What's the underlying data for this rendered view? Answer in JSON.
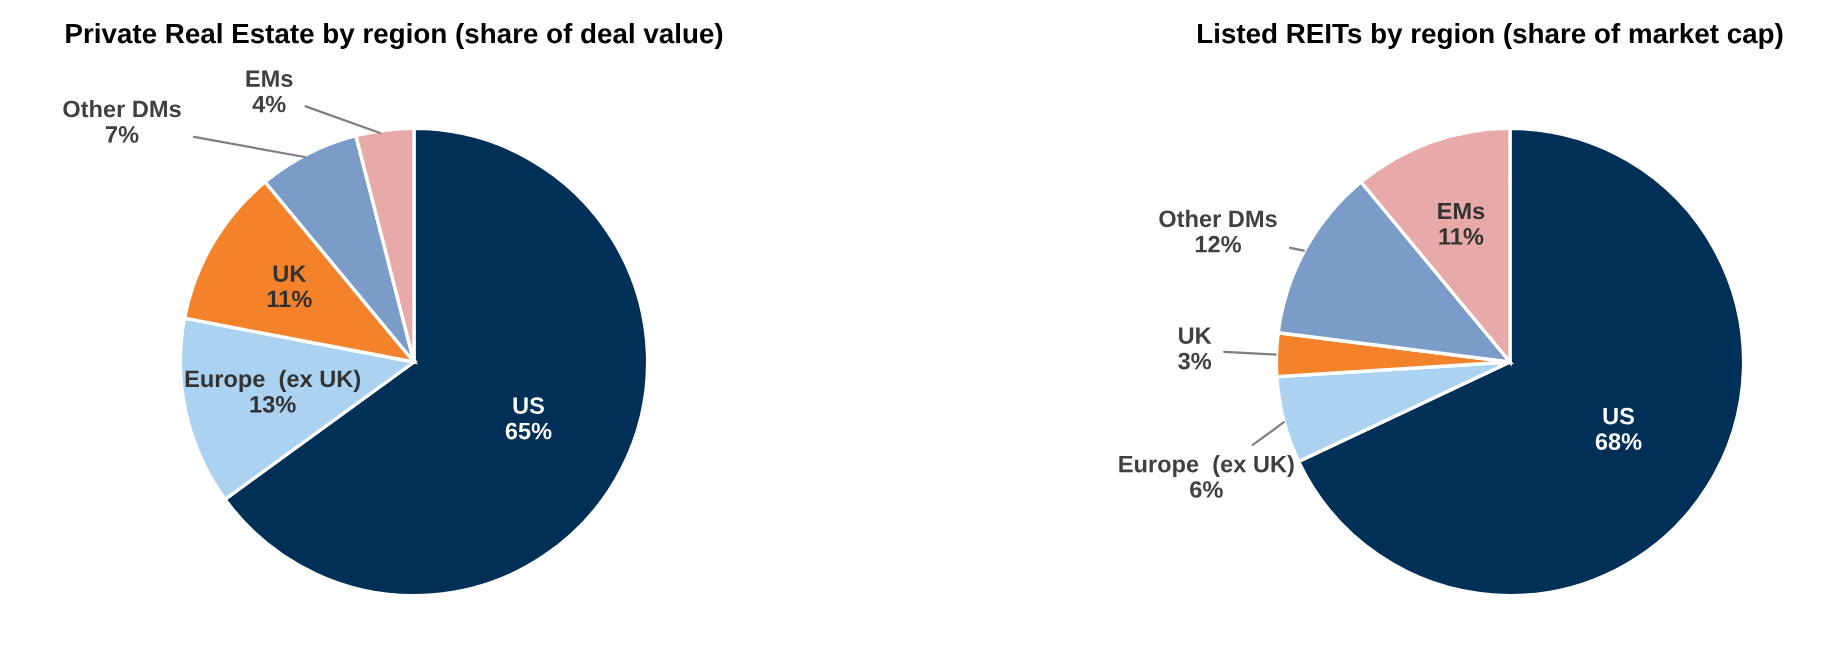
{
  "chart_data": [
    {
      "type": "pie",
      "title": "Private Real Estate by region (share of deal value)",
      "categories": [
        "US",
        "Europe  (ex UK)",
        "UK",
        "Other DMs",
        "EMs"
      ],
      "values": [
        65,
        13,
        11,
        7,
        4
      ],
      "value_labels": [
        "65%",
        "13%",
        "11%",
        "7%",
        "4%"
      ],
      "colors": [
        "#003057",
        "#abd2f0",
        "#f4822a",
        "#7b9cc9",
        "#e8a9a9"
      ]
    },
    {
      "type": "pie",
      "title": "Listed REITs by region (share of market cap)",
      "categories": [
        "US",
        "Europe  (ex UK)",
        "UK",
        "Other DMs",
        "EMs"
      ],
      "values": [
        68,
        6,
        3,
        12,
        11
      ],
      "value_labels": [
        "68%",
        "6%",
        "3%",
        "12%",
        "11%"
      ],
      "colors": [
        "#003057",
        "#abd2f0",
        "#f4822a",
        "#7b9cc9",
        "#e8a9a9"
      ]
    }
  ]
}
